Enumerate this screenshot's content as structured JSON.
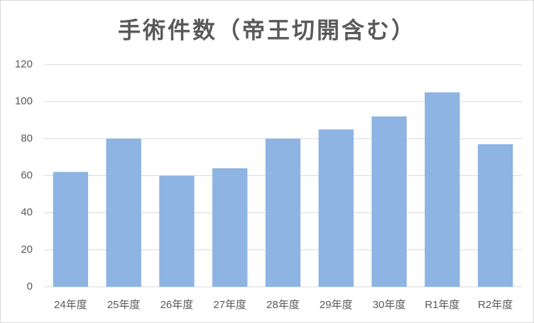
{
  "chart_data": {
    "type": "bar",
    "title": "手術件数（帝王切開含む）",
    "categories": [
      "24年度",
      "25年度",
      "26年度",
      "27年度",
      "28年度",
      "29年度",
      "30年度",
      "R1年度",
      "R2年度"
    ],
    "values": [
      62,
      80,
      60,
      64,
      80,
      85,
      92,
      105,
      77
    ],
    "color": "#8db4e2",
    "ylim": [
      0,
      120
    ],
    "yticks": [
      0,
      20,
      40,
      60,
      80,
      100,
      120
    ],
    "grid": true
  }
}
